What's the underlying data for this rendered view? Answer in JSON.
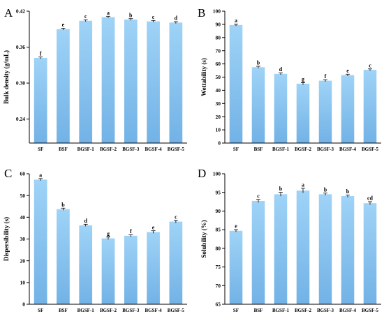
{
  "chart_data": [
    {
      "type": "bar",
      "panel_label": "A",
      "ylabel": "Bulk density (g/mL)",
      "ylim": [
        0.2,
        0.42
      ],
      "yticks": [
        "0.24",
        "0.30",
        "0.36",
        "0.42"
      ],
      "ytick_values": [
        0.24,
        0.3,
        0.36,
        0.42
      ],
      "categories": [
        "SF",
        "BSF",
        "BGSF-1",
        "BGSF-2",
        "BGSF-3",
        "BGSF-4",
        "BGSF-5"
      ],
      "values": [
        0.342,
        0.39,
        0.404,
        0.41,
        0.406,
        0.403,
        0.401
      ],
      "errors": [
        0.0008,
        0.0008,
        0.0008,
        0.0008,
        0.0008,
        0.0008,
        0.0008
      ],
      "letters": [
        "f",
        "e",
        "c",
        "a",
        "b",
        "c",
        "d"
      ],
      "bar_color": "#7fbfef"
    },
    {
      "type": "bar",
      "panel_label": "B",
      "ylabel": "Wettability (s)",
      "ylim": [
        0,
        100
      ],
      "yticks": [
        "0",
        "10",
        "20",
        "30",
        "40",
        "50",
        "60",
        "70",
        "80",
        "90",
        "100"
      ],
      "ytick_values": [
        0,
        10,
        20,
        30,
        40,
        50,
        60,
        70,
        80,
        90,
        100
      ],
      "categories": [
        "SF",
        "BSF",
        "BGSF-1",
        "BGSF-2",
        "BGSF-3",
        "BGSF-4",
        "BGSF-5"
      ],
      "values": [
        89.5,
        57.5,
        52.5,
        45.0,
        47.3,
        51.5,
        55.5
      ],
      "errors": [
        0.4,
        0.4,
        0.4,
        0.5,
        0.4,
        0.4,
        0.4
      ],
      "letters": [
        "a",
        "b",
        "d",
        "g",
        "f",
        "e",
        "c"
      ],
      "bar_color": "#7fbfef"
    },
    {
      "type": "bar",
      "panel_label": "C",
      "ylabel": "Dispersibility (s)",
      "ylim": [
        0,
        60
      ],
      "yticks": [
        "0",
        "10",
        "20",
        "30",
        "40",
        "50",
        "60"
      ],
      "ytick_values": [
        0,
        10,
        20,
        30,
        40,
        50,
        60
      ],
      "categories": [
        "SF",
        "BSF",
        "BGSF-1",
        "BGSF-2",
        "BGSF-3",
        "BGSF-4",
        "BGSF-5"
      ],
      "values": [
        57.3,
        43.7,
        36.3,
        30.3,
        31.5,
        33.2,
        38.0
      ],
      "errors": [
        0.3,
        0.3,
        0.3,
        0.4,
        0.3,
        0.4,
        0.4
      ],
      "letters": [
        "a",
        "b",
        "d",
        "g",
        "f",
        "e",
        "c"
      ],
      "bar_color": "#7fbfef"
    },
    {
      "type": "bar",
      "panel_label": "D",
      "ylabel": "Solubility (%)",
      "ylim": [
        65,
        100
      ],
      "yticks": [
        "65",
        "70",
        "75",
        "80",
        "85",
        "90",
        "95",
        "100"
      ],
      "ytick_values": [
        65,
        70,
        75,
        80,
        85,
        90,
        95,
        100
      ],
      "categories": [
        "SF",
        "BSF",
        "BGSF-1",
        "BGSF-2",
        "BGSF-3",
        "BGSF-4",
        "BGSF-5"
      ],
      "values": [
        84.7,
        92.7,
        94.5,
        95.5,
        94.5,
        94.0,
        92.1
      ],
      "errors": [
        0.2,
        0.3,
        0.4,
        0.5,
        0.2,
        0.2,
        0.3
      ],
      "letters": [
        "e",
        "c",
        "b",
        "a",
        "b",
        "b",
        "cd"
      ],
      "bar_color": "#7fbfef"
    }
  ]
}
